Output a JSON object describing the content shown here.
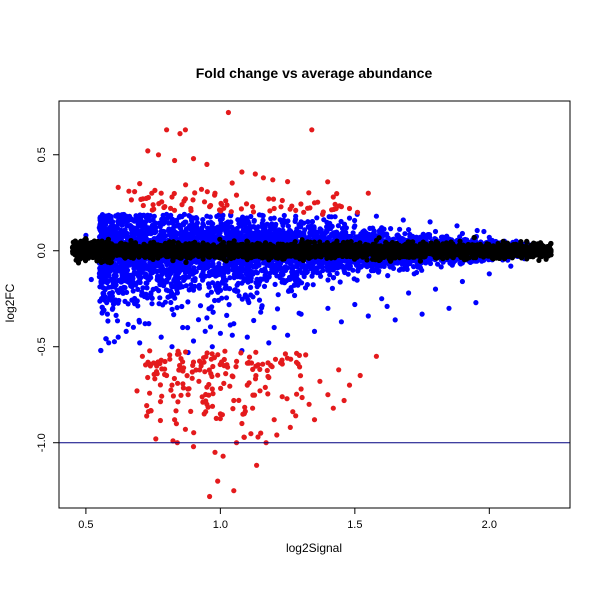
{
  "chart_data": {
    "type": "scatter",
    "title": "Fold change vs average abundance",
    "xlabel": "log2Signal",
    "ylabel": "log2FC",
    "xlim": [
      0.4,
      2.3
    ],
    "ylim": [
      -1.34,
      0.78
    ],
    "xticks": [
      0.5,
      1.0,
      1.5,
      2.0
    ],
    "xtick_labels": [
      "0.5",
      "1.0",
      "1.5",
      "2.0"
    ],
    "yticks": [
      -1.0,
      -0.5,
      0.0,
      0.5
    ],
    "ytick_labels": [
      "-1.0",
      "-0.5",
      "0.0",
      "0.5"
    ],
    "grid": false,
    "reference_line": {
      "y": -1.0,
      "color": "#000080"
    },
    "series_colors": {
      "significant": "#e41a1c",
      "moderate": "#0000ff",
      "background": "#000000"
    },
    "series": [
      {
        "color": "#e41a1c",
        "points": [
          [
            1.03,
            0.72
          ],
          [
            0.8,
            0.63
          ],
          [
            0.87,
            0.63
          ],
          [
            0.85,
            0.61
          ],
          [
            1.34,
            0.63
          ],
          [
            0.73,
            0.52
          ],
          [
            0.77,
            0.5
          ],
          [
            0.83,
            0.47
          ],
          [
            0.9,
            0.48
          ],
          [
            0.95,
            0.45
          ],
          [
            1.08,
            0.41
          ],
          [
            1.13,
            0.4
          ],
          [
            1.16,
            0.38
          ],
          [
            1.25,
            0.36
          ],
          [
            0.62,
            0.33
          ],
          [
            0.66,
            0.31
          ],
          [
            0.7,
            0.35
          ],
          [
            0.78,
            0.3
          ],
          [
            0.82,
            0.28
          ],
          [
            0.87,
            0.27
          ],
          [
            0.93,
            0.32
          ],
          [
            0.98,
            0.3
          ],
          [
            1.02,
            0.26
          ],
          [
            1.06,
            0.29
          ],
          [
            1.12,
            0.23
          ],
          [
            1.2,
            0.22
          ],
          [
            1.28,
            0.21
          ],
          [
            1.35,
            0.25
          ],
          [
            1.42,
            0.28
          ],
          [
            1.48,
            0.22
          ],
          [
            1.55,
            0.3
          ],
          [
            0.75,
            0.24
          ],
          [
            0.89,
            0.22
          ],
          [
            0.96,
            0.23
          ],
          [
            1.0,
            0.21
          ],
          [
            1.18,
            0.27
          ],
          [
            1.31,
            0.2
          ],
          [
            1.38,
            0.19
          ],
          [
            1.45,
            0.23
          ],
          [
            1.51,
            0.2
          ],
          [
            0.71,
            -0.55
          ],
          [
            0.74,
            -0.6
          ],
          [
            0.78,
            -0.57
          ],
          [
            0.8,
            -0.65
          ],
          [
            0.82,
            -0.7
          ],
          [
            0.85,
            -0.62
          ],
          [
            0.88,
            -0.75
          ],
          [
            0.9,
            -0.58
          ],
          [
            0.92,
            -0.68
          ],
          [
            0.95,
            -0.8
          ],
          [
            0.97,
            -0.72
          ],
          [
            1.0,
            -0.85
          ],
          [
            1.02,
            -0.64
          ],
          [
            1.05,
            -0.78
          ],
          [
            1.08,
            -0.9
          ],
          [
            1.1,
            -0.7
          ],
          [
            1.12,
            -0.82
          ],
          [
            1.15,
            -0.95
          ],
          [
            1.18,
            -0.66
          ],
          [
            1.2,
            -0.88
          ],
          [
            1.23,
            -0.76
          ],
          [
            1.26,
            -0.92
          ],
          [
            1.3,
            -0.72
          ],
          [
            1.33,
            -0.8
          ],
          [
            1.37,
            -0.68
          ],
          [
            1.4,
            -0.75
          ],
          [
            1.44,
            -0.62
          ],
          [
            1.48,
            -0.7
          ],
          [
            1.52,
            -0.65
          ],
          [
            1.58,
            -0.55
          ],
          [
            0.76,
            -0.98
          ],
          [
            0.84,
            -1.0
          ],
          [
            0.9,
            -1.02
          ],
          [
            0.98,
            -1.05
          ],
          [
            1.01,
            -1.07
          ],
          [
            1.06,
            -1.0
          ],
          [
            1.14,
            -0.97
          ],
          [
            1.17,
            -1.0
          ],
          [
            1.21,
            -0.96
          ],
          [
            0.99,
            -1.2
          ],
          [
            1.05,
            -1.25
          ],
          [
            0.96,
            -1.28
          ],
          [
            0.83,
            -0.88
          ],
          [
            0.87,
            -0.93
          ],
          [
            0.94,
            -0.85
          ],
          [
            0.69,
            -0.73
          ],
          [
            1.28,
            -0.86
          ],
          [
            1.35,
            -0.88
          ],
          [
            1.42,
            -0.82
          ],
          [
            1.46,
            -0.78
          ]
        ]
      },
      {
        "color": "#0000ff",
        "points": [
          [
            0.55,
            0.12
          ],
          [
            0.6,
            0.15
          ],
          [
            0.65,
            0.18
          ],
          [
            0.7,
            0.17
          ],
          [
            0.75,
            0.16
          ],
          [
            0.8,
            0.19
          ],
          [
            0.85,
            0.18
          ],
          [
            0.9,
            0.17
          ],
          [
            0.95,
            0.18
          ],
          [
            1.0,
            0.16
          ],
          [
            1.1,
            0.15
          ],
          [
            1.2,
            0.17
          ],
          [
            1.3,
            0.15
          ],
          [
            1.4,
            0.14
          ],
          [
            1.5,
            0.13
          ],
          [
            1.6,
            0.12
          ],
          [
            1.7,
            0.11
          ],
          [
            1.8,
            0.1
          ],
          [
            1.9,
            0.09
          ],
          [
            2.0,
            0.07
          ],
          [
            2.1,
            0.05
          ],
          [
            0.6,
            -0.3
          ],
          [
            0.65,
            -0.42
          ],
          [
            0.7,
            -0.48
          ],
          [
            0.72,
            -0.38
          ],
          [
            0.78,
            -0.45
          ],
          [
            0.82,
            -0.5
          ],
          [
            0.86,
            -0.4
          ],
          [
            0.9,
            -0.47
          ],
          [
            0.95,
            -0.35
          ],
          [
            1.0,
            -0.43
          ],
          [
            1.05,
            -0.38
          ],
          [
            1.1,
            -0.45
          ],
          [
            1.15,
            -0.32
          ],
          [
            1.2,
            -0.4
          ],
          [
            1.3,
            -0.33
          ],
          [
            1.4,
            -0.3
          ],
          [
            1.5,
            -0.28
          ],
          [
            1.6,
            -0.25
          ],
          [
            1.7,
            -0.22
          ],
          [
            1.8,
            -0.2
          ],
          [
            1.9,
            -0.16
          ],
          [
            2.0,
            -0.12
          ],
          [
            1.95,
            -0.27
          ],
          [
            1.85,
            -0.3
          ],
          [
            1.75,
            -0.33
          ],
          [
            1.65,
            -0.36
          ],
          [
            1.62,
            -0.29
          ],
          [
            1.55,
            -0.34
          ],
          [
            1.45,
            -0.37
          ],
          [
            1.35,
            -0.42
          ],
          [
            1.25,
            -0.44
          ],
          [
            1.18,
            -0.48
          ],
          [
            1.08,
            -0.52
          ],
          [
            0.97,
            -0.5
          ],
          [
            0.88,
            -0.53
          ],
          [
            0.62,
            -0.45
          ],
          [
            0.58,
            -0.33
          ],
          [
            0.52,
            -0.15
          ],
          [
            0.5,
            0.08
          ],
          [
            2.15,
            0.03
          ],
          [
            2.08,
            -0.08
          ],
          [
            1.98,
            0.1
          ],
          [
            1.88,
            0.13
          ],
          [
            1.78,
            0.15
          ],
          [
            1.68,
            0.16
          ],
          [
            1.58,
            0.18
          ],
          [
            1.48,
            0.17
          ],
          [
            1.38,
            0.19
          ],
          [
            1.28,
            0.18
          ]
        ]
      }
    ]
  }
}
